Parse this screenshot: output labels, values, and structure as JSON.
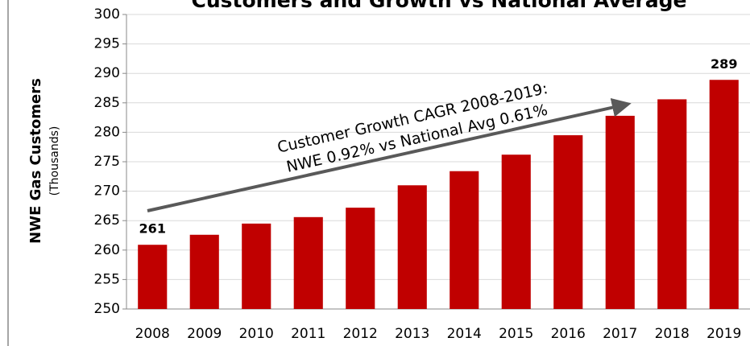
{
  "chart_data": {
    "type": "bar",
    "title": "Customers and Growth vs National Average",
    "y_label": "NWE Gas Customers",
    "y_sublabel": "(Thousands)",
    "annotation": [
      "Customer Growth CAGR 2008-2019:",
      "NWE 0.92% vs National Avg 0.61%"
    ],
    "categories": [
      "2008",
      "2009",
      "2010",
      "2011",
      "2012",
      "2013",
      "2014",
      "2015",
      "2016",
      "2017",
      "2018",
      "2019"
    ],
    "values": [
      260.9,
      262.6,
      264.5,
      265.6,
      267.2,
      271.0,
      273.4,
      276.2,
      279.5,
      282.8,
      285.6,
      288.9
    ],
    "value_labels": [
      "261",
      null,
      null,
      null,
      null,
      null,
      null,
      null,
      null,
      null,
      null,
      "289"
    ],
    "color": "#c00000",
    "ylim": [
      250,
      300
    ],
    "yticks": [
      250,
      255,
      260,
      265,
      270,
      275,
      280,
      285,
      290,
      295,
      300
    ],
    "grid": true
  }
}
